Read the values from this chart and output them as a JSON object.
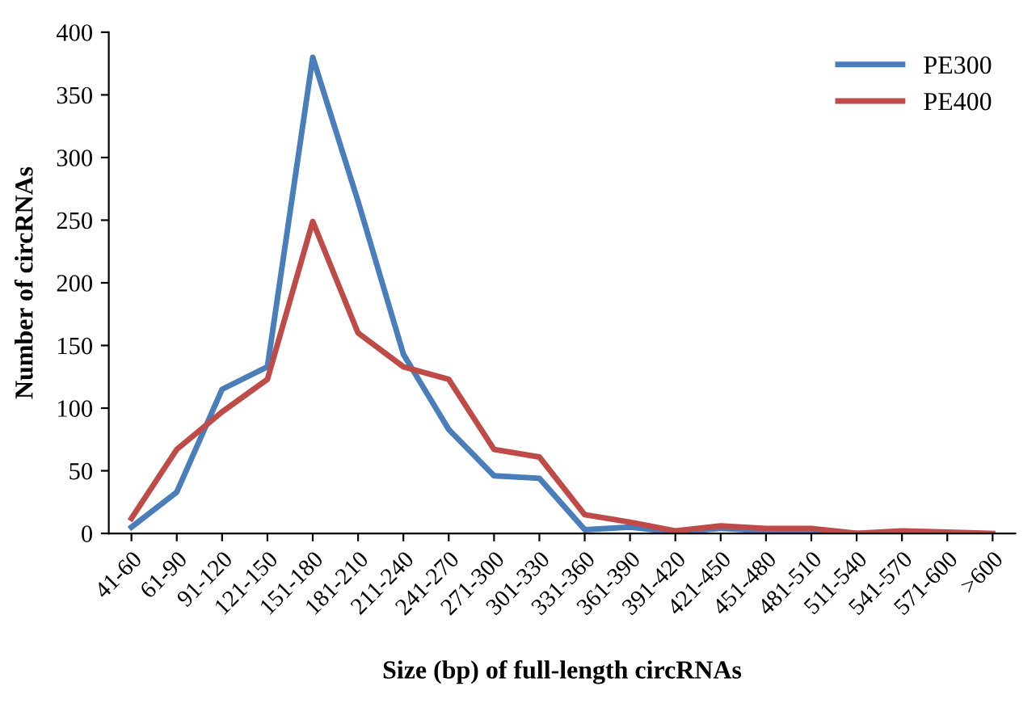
{
  "chart_data": {
    "type": "line",
    "xlabel": "Size (bp) of full-length circRNAs",
    "ylabel": "Number of circRNAs",
    "categories": [
      "41-60",
      "61-90",
      "91-120",
      "121-150",
      "151-180",
      "181-210",
      "211-240",
      "241-270",
      "271-300",
      "301-330",
      "331-360",
      "361-390",
      "391-420",
      "421-450",
      "451-480",
      "481-510",
      "511-540",
      "541-570",
      "571-600",
      ">600"
    ],
    "series": [
      {
        "name": "PE300",
        "color": "#4a7ebb",
        "values": [
          5,
          33,
          115,
          133,
          380,
          265,
          143,
          83,
          46,
          44,
          3,
          5,
          1,
          4,
          2,
          2,
          0,
          null,
          null,
          null
        ]
      },
      {
        "name": "PE400",
        "color": "#be4b48",
        "values": [
          12,
          67,
          97,
          123,
          249,
          160,
          133,
          123,
          67,
          61,
          15,
          9,
          2,
          6,
          4,
          4,
          0,
          2,
          1,
          0
        ]
      }
    ],
    "ylim": [
      0,
      400
    ],
    "yticks": [
      0,
      50,
      100,
      150,
      200,
      250,
      300,
      350,
      400
    ],
    "grid": false,
    "legend": "top right",
    "marker": "none",
    "line_style": "solid"
  }
}
